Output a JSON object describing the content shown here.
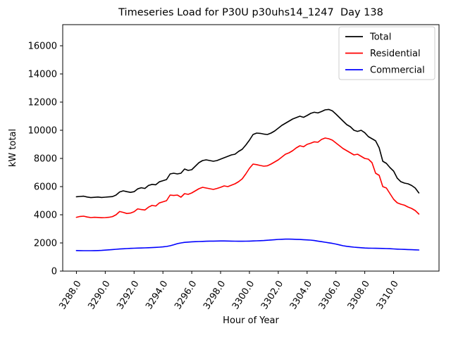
{
  "title": "Timeseries Load for P30U p30uhs14_1247  Day 138",
  "chart_data": {
    "type": "line",
    "title": "Timeseries Load for P30U p30uhs14_1247  Day 138",
    "xlabel": "Hour of Year",
    "ylabel": "kW total",
    "xlim": [
      3287.05,
      3313.15
    ],
    "ylim": [
      0,
      17500
    ],
    "grid": false,
    "legend_position": "upper right",
    "xticks": [
      3288,
      3290,
      3292,
      3294,
      3296,
      3298,
      3300,
      3302,
      3304,
      3306,
      3308,
      3310
    ],
    "xtick_labels": [
      "3288.0",
      "3290.0",
      "3292.0",
      "3294.0",
      "3296.0",
      "3298.0",
      "3300.0",
      "3302.0",
      "3304.0",
      "3306.0",
      "3308.0",
      "3310.0"
    ],
    "yticks": [
      0,
      2000,
      4000,
      6000,
      8000,
      10000,
      12000,
      14000,
      16000
    ],
    "ytick_labels": [
      "0",
      "2000",
      "4000",
      "6000",
      "8000",
      "10000",
      "12000",
      "14000",
      "16000"
    ],
    "x": [
      3288.0,
      3288.25,
      3288.5,
      3288.75,
      3289.0,
      3289.25,
      3289.5,
      3289.75,
      3290.0,
      3290.25,
      3290.5,
      3290.75,
      3291.0,
      3291.25,
      3291.5,
      3291.75,
      3292.0,
      3292.25,
      3292.5,
      3292.75,
      3293.0,
      3293.25,
      3293.5,
      3293.75,
      3294.0,
      3294.25,
      3294.5,
      3294.75,
      3295.0,
      3295.25,
      3295.5,
      3295.75,
      3296.0,
      3296.25,
      3296.5,
      3296.75,
      3297.0,
      3297.25,
      3297.5,
      3297.75,
      3298.0,
      3298.25,
      3298.5,
      3298.75,
      3299.0,
      3299.25,
      3299.5,
      3299.75,
      3300.0,
      3300.25,
      3300.5,
      3300.75,
      3301.0,
      3301.25,
      3301.5,
      3301.75,
      3302.0,
      3302.25,
      3302.5,
      3302.75,
      3303.0,
      3303.25,
      3303.5,
      3303.75,
      3304.0,
      3304.25,
      3304.5,
      3304.75,
      3305.0,
      3305.25,
      3305.5,
      3305.75,
      3306.0,
      3306.25,
      3306.5,
      3306.75,
      3307.0,
      3307.25,
      3307.5,
      3307.75,
      3308.0,
      3308.25,
      3308.5,
      3308.75,
      3309.0,
      3309.25,
      3309.5,
      3309.75,
      3310.0,
      3310.25,
      3310.5,
      3310.75,
      3311.0,
      3311.25,
      3311.5,
      3311.75
    ],
    "series": [
      {
        "name": "Total",
        "color": "#000000",
        "values": [
          5280,
          5300,
          5320,
          5260,
          5220,
          5240,
          5260,
          5230,
          5250,
          5270,
          5290,
          5400,
          5620,
          5700,
          5640,
          5590,
          5640,
          5840,
          5920,
          5870,
          6080,
          6160,
          6130,
          6340,
          6420,
          6500,
          6900,
          6950,
          6900,
          6950,
          7250,
          7150,
          7200,
          7450,
          7700,
          7850,
          7900,
          7850,
          7800,
          7850,
          7950,
          8050,
          8150,
          8250,
          8300,
          8500,
          8650,
          8950,
          9300,
          9700,
          9800,
          9780,
          9730,
          9700,
          9800,
          9950,
          10150,
          10350,
          10500,
          10650,
          10800,
          10900,
          11000,
          10920,
          11050,
          11200,
          11280,
          11230,
          11330,
          11450,
          11480,
          11380,
          11150,
          10900,
          10650,
          10400,
          10250,
          10000,
          9920,
          10000,
          9830,
          9550,
          9400,
          9250,
          8750,
          7800,
          7650,
          7350,
          7100,
          6600,
          6350,
          6250,
          6200,
          6080,
          5900,
          5550
        ]
      },
      {
        "name": "Residential",
        "color": "#ff0000",
        "values": [
          3820,
          3880,
          3900,
          3840,
          3800,
          3820,
          3810,
          3790,
          3800,
          3820,
          3870,
          4000,
          4230,
          4170,
          4090,
          4120,
          4220,
          4420,
          4370,
          4340,
          4540,
          4670,
          4620,
          4840,
          4920,
          5000,
          5400,
          5370,
          5400,
          5250,
          5500,
          5450,
          5550,
          5700,
          5850,
          5950,
          5900,
          5850,
          5800,
          5870,
          5950,
          6050,
          6000,
          6100,
          6200,
          6350,
          6550,
          6900,
          7300,
          7600,
          7560,
          7500,
          7450,
          7480,
          7600,
          7750,
          7900,
          8100,
          8300,
          8400,
          8550,
          8750,
          8900,
          8830,
          9000,
          9080,
          9180,
          9150,
          9350,
          9450,
          9400,
          9300,
          9100,
          8900,
          8700,
          8550,
          8400,
          8250,
          8300,
          8150,
          8000,
          7950,
          7700,
          6950,
          6800,
          6000,
          5900,
          5500,
          5100,
          4850,
          4750,
          4680,
          4550,
          4450,
          4300,
          4050
        ]
      },
      {
        "name": "Commercial",
        "color": "#0000ff",
        "values": [
          1460,
          1455,
          1450,
          1450,
          1450,
          1455,
          1460,
          1470,
          1490,
          1510,
          1530,
          1550,
          1570,
          1585,
          1600,
          1615,
          1625,
          1635,
          1640,
          1650,
          1660,
          1670,
          1685,
          1700,
          1720,
          1750,
          1800,
          1870,
          1950,
          2000,
          2040,
          2060,
          2080,
          2090,
          2100,
          2110,
          2120,
          2130,
          2130,
          2135,
          2140,
          2140,
          2135,
          2130,
          2125,
          2120,
          2120,
          2125,
          2130,
          2140,
          2150,
          2160,
          2170,
          2190,
          2210,
          2230,
          2250,
          2260,
          2270,
          2270,
          2265,
          2255,
          2245,
          2230,
          2215,
          2200,
          2170,
          2130,
          2090,
          2050,
          2010,
          1970,
          1920,
          1860,
          1800,
          1760,
          1730,
          1700,
          1680,
          1660,
          1640,
          1630,
          1625,
          1620,
          1615,
          1610,
          1600,
          1590,
          1575,
          1560,
          1550,
          1540,
          1530,
          1520,
          1510,
          1500
        ]
      }
    ]
  }
}
